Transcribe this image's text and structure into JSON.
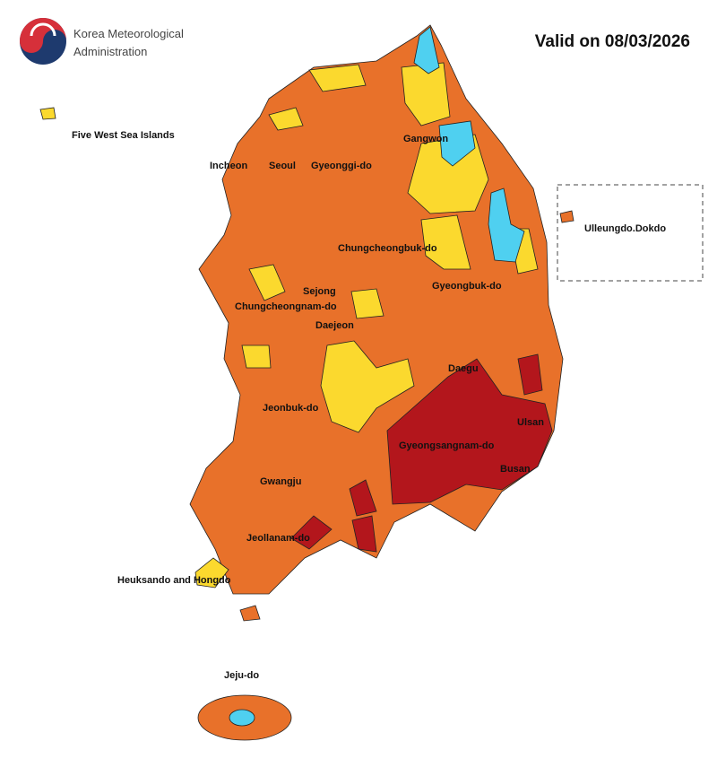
{
  "header": {
    "agency_line1": "Korea Meteorological",
    "agency_line2": "Administration",
    "valid": "Valid on 08/03/2026"
  },
  "regions": [
    {
      "label": "Five West Sea Islands"
    },
    {
      "label": "Incheon"
    },
    {
      "label": "Seoul"
    },
    {
      "label": "Gyeonggi-do"
    },
    {
      "label": "Gangwon"
    },
    {
      "label": "Ulleungdo.Dokdo"
    },
    {
      "label": "Chungcheongbuk-do"
    },
    {
      "label": "Sejong"
    },
    {
      "label": "Chungcheongnam-do"
    },
    {
      "label": "Daejeon"
    },
    {
      "label": "Gyeongbuk-do"
    },
    {
      "label": "Daegu"
    },
    {
      "label": "Ulsan"
    },
    {
      "label": "Jeonbuk-do"
    },
    {
      "label": "Gyeongsangnam-do"
    },
    {
      "label": "Busan"
    },
    {
      "label": "Gwangju"
    },
    {
      "label": "Jeollanam-do"
    },
    {
      "label": "Heuksando and Hongdo"
    },
    {
      "label": "Jeju-do"
    }
  ]
}
